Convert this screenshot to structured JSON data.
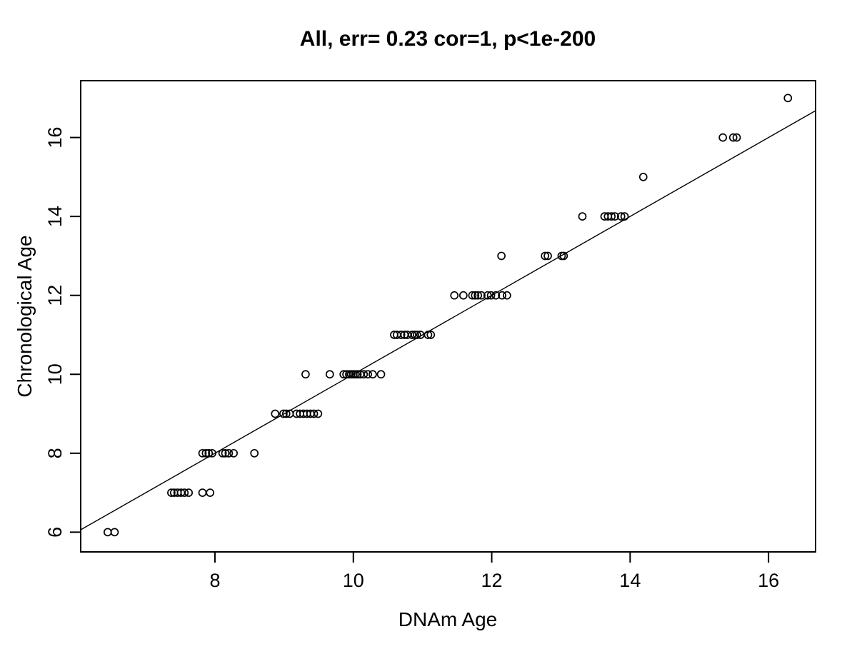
{
  "figure": {
    "background_color": "#ffffff",
    "foreground_color": "#000000"
  },
  "chart_data": {
    "type": "scatter",
    "title": "All, err= 0.23 cor=1, p<1e-200",
    "xlabel": "DNAm Age",
    "ylabel": "Chronological Age",
    "xlim": [
      6.06,
      16.68
    ],
    "ylim": [
      5.5,
      17.44
    ],
    "x_ticks": [
      8,
      10,
      12,
      14,
      16
    ],
    "y_ticks": [
      6,
      8,
      10,
      12,
      14,
      16
    ],
    "grid": false,
    "marker": "open-circle",
    "fit_line": {
      "type": "identity",
      "x1": 6.06,
      "y1": 6.06,
      "x2": 16.68,
      "y2": 16.68
    },
    "points": [
      [
        6.45,
        6
      ],
      [
        6.55,
        6
      ],
      [
        7.37,
        7
      ],
      [
        7.41,
        7
      ],
      [
        7.46,
        7
      ],
      [
        7.51,
        7
      ],
      [
        7.56,
        7
      ],
      [
        7.62,
        7
      ],
      [
        7.82,
        7
      ],
      [
        7.93,
        7
      ],
      [
        7.82,
        8
      ],
      [
        7.87,
        8
      ],
      [
        7.91,
        8
      ],
      [
        7.96,
        8
      ],
      [
        8.11,
        8
      ],
      [
        8.15,
        8
      ],
      [
        8.2,
        8
      ],
      [
        8.27,
        8
      ],
      [
        8.57,
        8
      ],
      [
        8.87,
        9
      ],
      [
        8.99,
        9
      ],
      [
        9.03,
        9
      ],
      [
        9.08,
        9
      ],
      [
        9.18,
        9
      ],
      [
        9.23,
        9
      ],
      [
        9.28,
        9
      ],
      [
        9.33,
        9
      ],
      [
        9.38,
        9
      ],
      [
        9.43,
        9
      ],
      [
        9.49,
        9
      ],
      [
        9.31,
        10
      ],
      [
        9.66,
        10
      ],
      [
        9.86,
        10
      ],
      [
        9.9,
        10
      ],
      [
        9.94,
        10
      ],
      [
        9.97,
        10
      ],
      [
        10.0,
        10
      ],
      [
        10.03,
        10
      ],
      [
        10.06,
        10
      ],
      [
        10.1,
        10
      ],
      [
        10.15,
        10
      ],
      [
        10.21,
        10
      ],
      [
        10.28,
        10
      ],
      [
        10.4,
        10
      ],
      [
        10.59,
        11
      ],
      [
        10.63,
        11
      ],
      [
        10.69,
        11
      ],
      [
        10.74,
        11
      ],
      [
        10.78,
        11
      ],
      [
        10.85,
        11
      ],
      [
        10.89,
        11
      ],
      [
        10.92,
        11
      ],
      [
        10.97,
        11
      ],
      [
        11.08,
        11
      ],
      [
        11.12,
        11
      ],
      [
        11.46,
        12
      ],
      [
        11.59,
        12
      ],
      [
        11.72,
        12
      ],
      [
        11.76,
        12
      ],
      [
        11.8,
        12
      ],
      [
        11.85,
        12
      ],
      [
        11.94,
        12
      ],
      [
        11.99,
        12
      ],
      [
        12.06,
        12
      ],
      [
        12.15,
        12
      ],
      [
        12.22,
        12
      ],
      [
        12.14,
        13
      ],
      [
        12.77,
        13
      ],
      [
        12.81,
        13
      ],
      [
        13.01,
        13
      ],
      [
        13.04,
        13
      ],
      [
        13.31,
        14
      ],
      [
        13.63,
        14
      ],
      [
        13.68,
        14
      ],
      [
        13.73,
        14
      ],
      [
        13.78,
        14
      ],
      [
        13.87,
        14
      ],
      [
        13.92,
        14
      ],
      [
        14.19,
        15
      ],
      [
        15.34,
        16
      ],
      [
        15.49,
        16
      ],
      [
        15.54,
        16
      ],
      [
        16.28,
        17
      ]
    ]
  }
}
